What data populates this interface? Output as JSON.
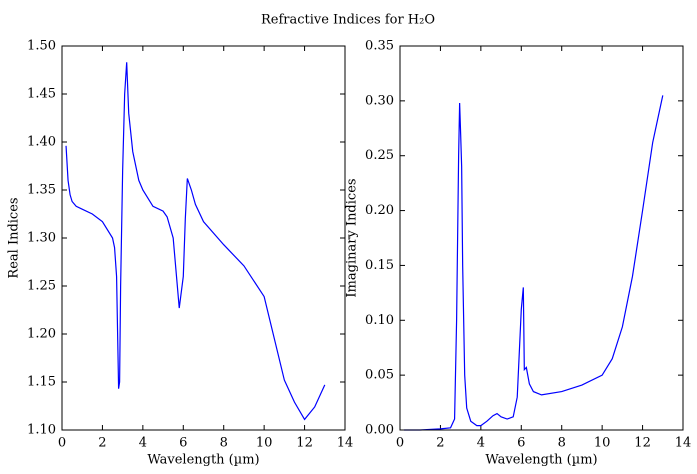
{
  "title": "Refractive Indices for H₂O",
  "chart_data": [
    {
      "type": "line",
      "xlabel": "Wavelength (µm)",
      "ylabel": "Real Indices",
      "color": "#0000ff",
      "x": [
        0.2,
        0.3,
        0.4,
        0.5,
        0.7,
        1,
        1.5,
        2,
        2.5,
        2.6,
        2.7,
        2.8,
        2.85,
        2.9,
        3.0,
        3.1,
        3.2,
        3.3,
        3.5,
        3.8,
        4,
        4.5,
        5,
        5.2,
        5.5,
        5.8,
        6.0,
        6.1,
        6.2,
        6.4,
        6.6,
        7,
        8,
        9,
        10,
        11,
        11.5,
        12,
        12.5,
        13
      ],
      "values": [
        1.396,
        1.36,
        1.345,
        1.338,
        1.333,
        1.33,
        1.325,
        1.317,
        1.3,
        1.29,
        1.26,
        1.143,
        1.15,
        1.25,
        1.37,
        1.45,
        1.483,
        1.43,
        1.39,
        1.36,
        1.35,
        1.333,
        1.328,
        1.322,
        1.3,
        1.227,
        1.26,
        1.32,
        1.362,
        1.35,
        1.335,
        1.317,
        1.293,
        1.271,
        1.239,
        1.152,
        1.129,
        1.111,
        1.124,
        1.147
      ],
      "xlim": [
        0,
        14
      ],
      "xticks": [
        0,
        2,
        4,
        6,
        8,
        10,
        12,
        14
      ],
      "ylim": [
        1.1,
        1.5
      ],
      "yticks": [
        {
          "value": 1.1,
          "label": "1.10"
        },
        1.15,
        {
          "value": 1.2,
          "label": "1.20"
        },
        1.25,
        {
          "value": 1.3,
          "label": "1.30"
        },
        1.35,
        {
          "value": 1.4,
          "label": "1.40"
        },
        1.45,
        {
          "value": 1.5,
          "label": "1.50"
        }
      ]
    },
    {
      "type": "line",
      "xlabel": "Wavelength (µm)",
      "ylabel": "Imaginary Indices",
      "color": "#0000ff",
      "x": [
        0.2,
        1,
        2,
        2.5,
        2.7,
        2.8,
        2.9,
        2.95,
        3.0,
        3.05,
        3.1,
        3.2,
        3.3,
        3.5,
        3.8,
        4,
        4.3,
        4.6,
        4.8,
        5,
        5.3,
        5.6,
        5.8,
        6.0,
        6.1,
        6.15,
        6.25,
        6.4,
        6.6,
        7,
        8,
        9,
        10,
        10.5,
        11,
        11.5,
        12,
        12.5,
        13
      ],
      "values": [
        0,
        0,
        0.001,
        0.002,
        0.01,
        0.1,
        0.25,
        0.298,
        0.27,
        0.24,
        0.15,
        0.05,
        0.02,
        0.008,
        0.004,
        0.004,
        0.008,
        0.013,
        0.015,
        0.012,
        0.01,
        0.012,
        0.03,
        0.11,
        0.13,
        0.055,
        0.057,
        0.042,
        0.035,
        0.032,
        0.035,
        0.041,
        0.05,
        0.065,
        0.094,
        0.14,
        0.2,
        0.262,
        0.305
      ],
      "xlim": [
        0,
        14
      ],
      "xticks": [
        0,
        2,
        4,
        6,
        8,
        10,
        12,
        14
      ],
      "ylim": [
        0,
        0.35
      ],
      "yticks": [
        {
          "value": 0,
          "label": "0.00"
        },
        0.05,
        {
          "value": 0.1,
          "label": "0.10"
        },
        0.15,
        {
          "value": 0.2,
          "label": "0.20"
        },
        0.25,
        {
          "value": 0.3,
          "label": "0.30"
        },
        0.35
      ]
    }
  ]
}
